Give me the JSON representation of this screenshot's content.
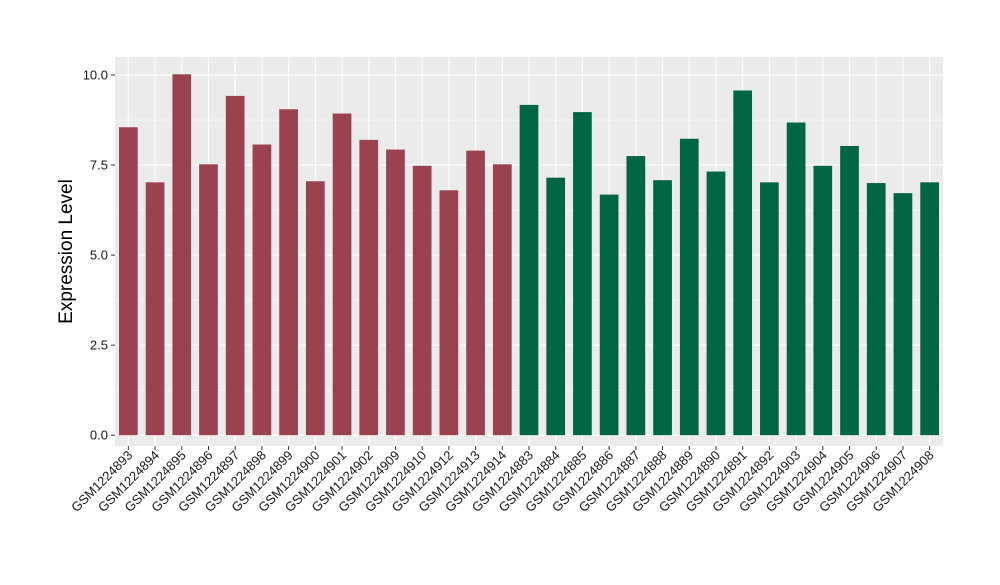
{
  "chart_data": {
    "type": "bar",
    "xlabel": "",
    "ylabel": "Expression Level",
    "ylim": [
      -0.3,
      10.5
    ],
    "yticks": [
      0.0,
      2.5,
      5.0,
      7.5,
      10.0
    ],
    "ytick_labels": [
      "0.0",
      "2.5",
      "5.0",
      "7.5",
      "10.0"
    ],
    "grid": true,
    "categories": [
      "GSM1224893",
      "GSM1224894",
      "GSM1224895",
      "GSM1224896",
      "GSM1224897",
      "GSM1224898",
      "GSM1224899",
      "GSM1224900",
      "GSM1224901",
      "GSM1224902",
      "GSM1224909",
      "GSM1224910",
      "GSM1224912",
      "GSM1224913",
      "GSM1224914",
      "GSM1224883",
      "GSM1224884",
      "GSM1224885",
      "GSM1224886",
      "GSM1224887",
      "GSM1224888",
      "GSM1224889",
      "GSM1224890",
      "GSM1224891",
      "GSM1224892",
      "GSM1224903",
      "GSM1224904",
      "GSM1224905",
      "GSM1224906",
      "GSM1224907",
      "GSM1224908"
    ],
    "values": [
      8.55,
      7.02,
      10.02,
      7.52,
      9.42,
      8.07,
      9.05,
      7.05,
      8.93,
      8.2,
      7.93,
      7.48,
      6.8,
      7.9,
      7.52,
      9.17,
      7.15,
      8.97,
      6.68,
      7.75,
      7.08,
      8.23,
      7.32,
      9.57,
      7.02,
      8.68,
      7.48,
      8.03,
      7.0,
      6.72,
      7.02
    ],
    "bar_colors": [
      "#9a4250",
      "#9a4250",
      "#9a4250",
      "#9a4250",
      "#9a4250",
      "#9a4250",
      "#9a4250",
      "#9a4250",
      "#9a4250",
      "#9a4250",
      "#9a4250",
      "#9a4250",
      "#9a4250",
      "#9a4250",
      "#9a4250",
      "#006644",
      "#006644",
      "#006644",
      "#006644",
      "#006644",
      "#006644",
      "#006644",
      "#006644",
      "#006644",
      "#006644",
      "#006644",
      "#006644",
      "#006644",
      "#006644",
      "#006644",
      "#006644"
    ],
    "colors": {
      "group1": "#9a4250",
      "group2": "#006644",
      "panel_background": "#ebebeb",
      "grid": "#ffffff"
    }
  }
}
